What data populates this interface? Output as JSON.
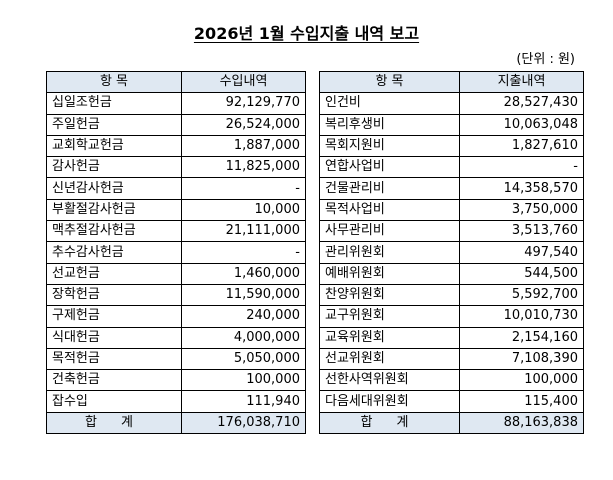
{
  "title": "2026년 1월 수입지출 내역 보고",
  "unit": "(단위 : 원)",
  "income": {
    "headers": [
      "항 목",
      "수입내역"
    ],
    "rows": [
      {
        "item": "십일조헌금",
        "amount": "92,129,770"
      },
      {
        "item": "주일헌금",
        "amount": "26,524,000"
      },
      {
        "item": "교회학교헌금",
        "amount": "1,887,000"
      },
      {
        "item": "감사헌금",
        "amount": "11,825,000"
      },
      {
        "item": "신년감사헌금",
        "amount": "-"
      },
      {
        "item": "부활절감사헌금",
        "amount": "10,000"
      },
      {
        "item": "맥추절감사헌금",
        "amount": "21,111,000"
      },
      {
        "item": "추수감사헌금",
        "amount": "-"
      },
      {
        "item": "선교헌금",
        "amount": "1,460,000"
      },
      {
        "item": "장학헌금",
        "amount": "11,590,000"
      },
      {
        "item": "구제헌금",
        "amount": "240,000"
      },
      {
        "item": "식대헌금",
        "amount": "4,000,000"
      },
      {
        "item": "목적헌금",
        "amount": "5,050,000"
      },
      {
        "item": "건축헌금",
        "amount": "100,000"
      },
      {
        "item": "잡수입",
        "amount": "111,940"
      }
    ],
    "total_label": "합 계",
    "total": "176,038,710"
  },
  "expense": {
    "headers": [
      "항 목",
      "지출내역"
    ],
    "rows": [
      {
        "item": "인건비",
        "amount": "28,527,430"
      },
      {
        "item": "복리후생비",
        "amount": "10,063,048"
      },
      {
        "item": "목회지원비",
        "amount": "1,827,610"
      },
      {
        "item": "연합사업비",
        "amount": "-"
      },
      {
        "item": "건물관리비",
        "amount": "14,358,570"
      },
      {
        "item": "목적사업비",
        "amount": "3,750,000"
      },
      {
        "item": "사무관리비",
        "amount": "3,513,760"
      },
      {
        "item": "관리위원회",
        "amount": "497,540"
      },
      {
        "item": "예배위원회",
        "amount": "544,500"
      },
      {
        "item": "찬양위원회",
        "amount": "5,592,700"
      },
      {
        "item": "교구위원회",
        "amount": "10,010,730"
      },
      {
        "item": "교육위원회",
        "amount": "2,154,160"
      },
      {
        "item": "선교위원회",
        "amount": "7,108,390"
      },
      {
        "item": "선한사역위원회",
        "amount": "100,000"
      },
      {
        "item": "다음세대위원회",
        "amount": "115,400"
      }
    ],
    "total_label": "합 계",
    "total": "88,163,838"
  }
}
